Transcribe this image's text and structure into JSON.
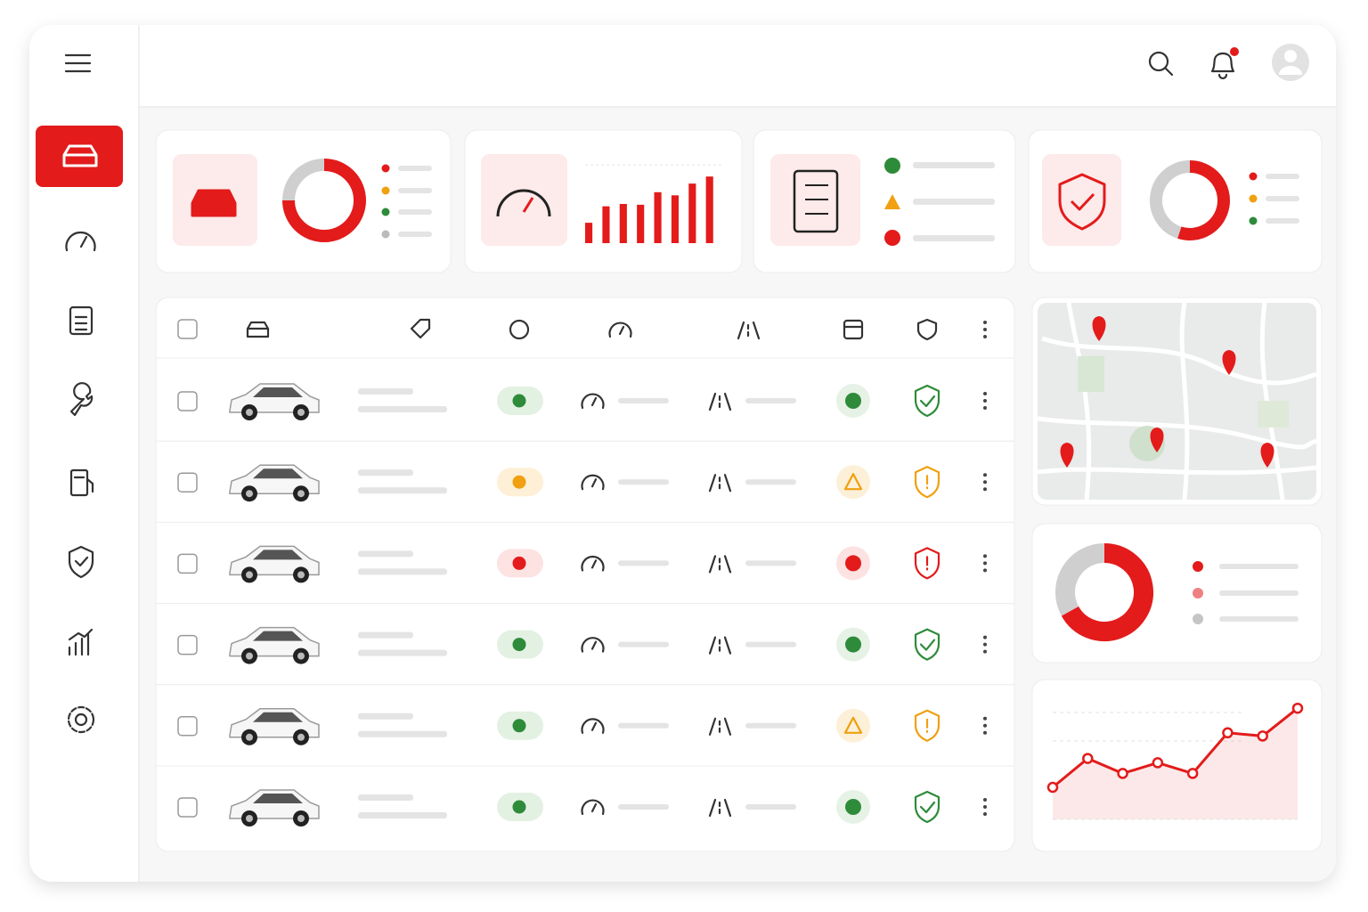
{
  "charts": [
    {
      "type": "donut",
      "values": [
        75,
        25
      ],
      "colors": [
        "#e31b1b",
        "#cfcfcf"
      ]
    },
    {
      "type": "bar",
      "values": [
        26,
        47,
        50,
        49,
        65,
        61,
        76,
        85
      ],
      "ylim": [
        0,
        100
      ],
      "color": "#e31b1b"
    },
    {
      "type": "donut",
      "values": [
        55,
        45
      ],
      "colors": [
        "#e31b1b",
        "#cfcfcf"
      ]
    },
    {
      "type": "donut",
      "values": [
        67,
        33
      ],
      "colors": [
        "#e31b1b",
        "#cfcfcf"
      ]
    },
    {
      "type": "line",
      "values": [
        30,
        57,
        43,
        53,
        43,
        81,
        78,
        104
      ],
      "ylim": [
        0,
        120
      ],
      "color": "#e31b1b"
    }
  ],
  "fleet_rows": [
    {
      "status": "#2e8b3a",
      "badge": "ok"
    },
    {
      "status": "#f0a010",
      "badge": "warn"
    },
    {
      "status": "#e31b1b",
      "badge": "error"
    },
    {
      "status": "#2e8b3a",
      "badge": "ok"
    },
    {
      "status": "#2e8b3a",
      "badge": "warn"
    },
    {
      "status": "#2e8b3a",
      "badge": "ok"
    }
  ]
}
